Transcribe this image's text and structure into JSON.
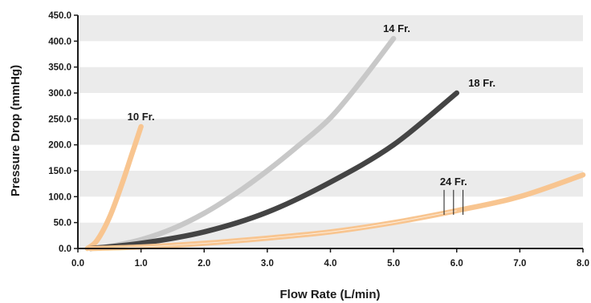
{
  "chart_data": {
    "type": "line",
    "title": "",
    "xlabel": "Flow Rate (L/min)",
    "ylabel": "Pressure Drop (mmHg)",
    "xlim": [
      0,
      8
    ],
    "ylim": [
      0,
      450
    ],
    "x_ticks": [
      "0.0",
      "1.0",
      "2.0",
      "3.0",
      "4.0",
      "5.0",
      "6.0",
      "7.0",
      "8.0"
    ],
    "y_ticks": [
      "0.0",
      "50.0",
      "100.0",
      "150.0",
      "200.0",
      "250.0",
      "300.0",
      "350.0",
      "400.0",
      "450.0"
    ],
    "grid": "alternating horizontal bands",
    "legend": "none (series labeled at line ends)",
    "series": [
      {
        "name": "10 Fr.",
        "color": "#f8c590",
        "x": [
          0.15,
          0.3,
          0.5,
          0.7,
          0.85,
          1.0
        ],
        "y": [
          0,
          15,
          60,
          125,
          180,
          235
        ]
      },
      {
        "name": "14 Fr.",
        "color": "#c8c8c8",
        "x": [
          0.2,
          0.5,
          1.0,
          1.5,
          2.0,
          2.5,
          3.0,
          3.5,
          4.0,
          4.5,
          5.0
        ],
        "y": [
          0,
          4,
          17,
          38,
          68,
          106,
          150,
          199,
          252,
          325,
          405
        ]
      },
      {
        "name": "18 Fr.",
        "color": "#444444",
        "x": [
          0.2,
          1.0,
          2.0,
          3.0,
          4.0,
          5.0,
          6.0
        ],
        "y": [
          0,
          10,
          32,
          70,
          128,
          200,
          300
        ]
      },
      {
        "name": "24 Fr.",
        "color": "#f8c590",
        "x": [
          0.2,
          1.0,
          2.0,
          3.0,
          4.0,
          5.0,
          6.0,
          7.0,
          8.0
        ],
        "y": [
          0,
          3,
          10,
          20,
          32,
          50,
          73,
          100,
          142
        ]
      }
    ],
    "annotations": [
      {
        "text": "10 Fr.",
        "x": 1.0,
        "y": 235
      },
      {
        "text": "14 Fr.",
        "x": 5.05,
        "y": 405
      },
      {
        "text": "18 Fr.",
        "x": 6.4,
        "y": 300
      },
      {
        "text": "24 Fr.",
        "x": 5.95,
        "y": 110
      }
    ]
  }
}
